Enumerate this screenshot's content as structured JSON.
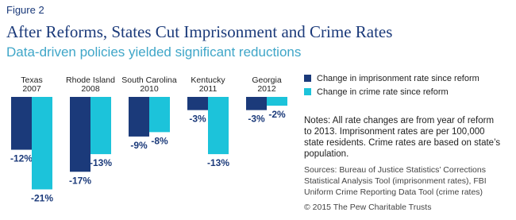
{
  "chart_data": {
    "type": "bar",
    "figure_label": "Figure 2",
    "title": "After Reforms, States Cut Imprisonment and Crime Rates",
    "subtitle": "Data-driven policies yielded significant reductions",
    "categories": [
      [
        "Texas",
        "2007"
      ],
      [
        "Rhode Island",
        "2008"
      ],
      [
        "South Carolina",
        "2010"
      ],
      [
        "Kentucky",
        "2011"
      ],
      [
        "Georgia",
        "2012"
      ]
    ],
    "series": [
      {
        "name": "Change in imprisonment rate since reform",
        "color": "#1b3a7a",
        "values": [
          -12,
          -17,
          -9,
          -3,
          -3
        ],
        "value_labels": [
          "-12%",
          "-17%",
          "-9%",
          "-3%",
          "-3%"
        ]
      },
      {
        "name": "Change in crime rate since reform",
        "color": "#1cc3da",
        "values": [
          -21,
          -13,
          -8,
          -13,
          -2
        ],
        "value_labels": [
          "-21%",
          "-13%",
          "-8%",
          "-13%",
          "-2%"
        ]
      }
    ],
    "ylim": [
      -22,
      0
    ],
    "notes": [
      "Notes: All rate changes are from year of reform",
      "to 2013. Imprisonment rates are per 100,000",
      "state residents. Crime rates are based on state’s",
      "population."
    ],
    "sources": [
      "Sources: Bureau of Justice Statistics’ Corrections",
      "Statistical Analysis Tool (imprisonment rates), FBI",
      "Uniform Crime Reporting Data Tool (crime rates)"
    ],
    "credit": "© 2015 The Pew Charitable Trusts"
  }
}
